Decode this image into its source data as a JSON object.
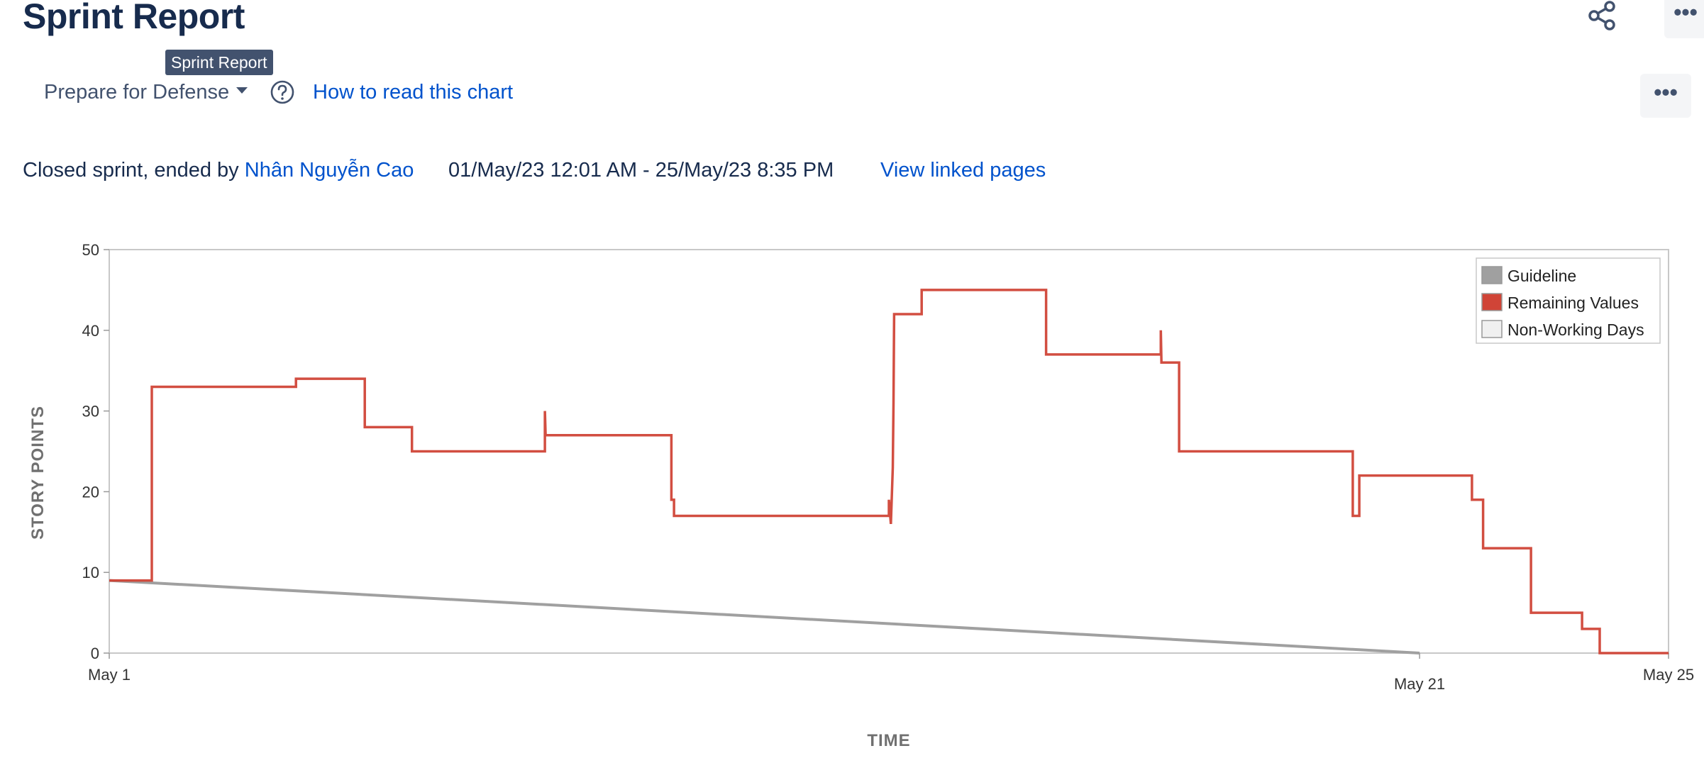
{
  "header": {
    "title": "Sprint Report",
    "tooltip": "Sprint Report",
    "share_icon": "share-icon",
    "more_label": "•••"
  },
  "toolbar": {
    "sprint_selected": "Prepare for Defense",
    "help_icon": "question-circle-icon",
    "how_to_read": "How to read this chart",
    "more_label": "•••"
  },
  "sprint_info": {
    "status_prefix": "Closed sprint, ended by ",
    "ended_by": "Nhân Nguyễn Cao",
    "date_range": "01/May/23 12:01 AM - 25/May/23 8:35 PM",
    "linked_pages": "View linked pages"
  },
  "chart_data": {
    "type": "line",
    "title": "",
    "xlabel": "TIME",
    "ylabel": "STORY POINTS",
    "x_unit": "days since May 1 start",
    "xlim": [
      0,
      23.8
    ],
    "ylim": [
      0,
      50
    ],
    "y_ticks": [
      0,
      10,
      20,
      30,
      40,
      50
    ],
    "x_ticks": [
      {
        "value": 0,
        "label": "May 1"
      },
      {
        "value": 20,
        "label": "May 21"
      },
      {
        "value": 23.8,
        "label": "May 25"
      }
    ],
    "grid": false,
    "legend_placement": "top-right",
    "legend": [
      {
        "name": "Guideline",
        "color": "#a0a0a0"
      },
      {
        "name": "Remaining Values",
        "color": "#d04437"
      },
      {
        "name": "Non-Working Days",
        "color": "#f0f0f0"
      }
    ],
    "series": [
      {
        "name": "Guideline",
        "color": "#a0a0a0",
        "points": [
          [
            0,
            9
          ],
          [
            20,
            0
          ]
        ]
      },
      {
        "name": "Remaining Values",
        "color": "#d04437",
        "step": true,
        "points": [
          [
            0,
            9
          ],
          [
            0.65,
            9
          ],
          [
            0.65,
            33
          ],
          [
            2.85,
            33
          ],
          [
            2.85,
            34
          ],
          [
            3.9,
            34
          ],
          [
            3.9,
            28
          ],
          [
            4.62,
            28
          ],
          [
            4.62,
            25
          ],
          [
            6.65,
            25
          ],
          [
            6.65,
            30
          ],
          [
            6.66,
            27
          ],
          [
            8.58,
            27
          ],
          [
            8.58,
            19
          ],
          [
            8.62,
            19
          ],
          [
            8.62,
            17
          ],
          [
            11.9,
            17
          ],
          [
            11.9,
            19
          ],
          [
            11.93,
            16
          ],
          [
            11.96,
            23
          ],
          [
            11.97,
            31
          ],
          [
            11.98,
            42
          ],
          [
            12.4,
            42
          ],
          [
            12.4,
            45
          ],
          [
            14.3,
            45
          ],
          [
            14.3,
            37
          ],
          [
            16.05,
            37
          ],
          [
            16.05,
            40
          ],
          [
            16.06,
            36
          ],
          [
            16.33,
            36
          ],
          [
            16.33,
            25
          ],
          [
            18.98,
            25
          ],
          [
            18.98,
            17
          ],
          [
            19.08,
            17
          ],
          [
            19.08,
            22
          ],
          [
            20.8,
            22
          ],
          [
            20.8,
            19
          ],
          [
            20.97,
            19
          ],
          [
            20.97,
            13
          ],
          [
            21.7,
            13
          ],
          [
            21.7,
            5
          ],
          [
            22.48,
            5
          ],
          [
            22.48,
            3
          ],
          [
            22.75,
            3
          ],
          [
            22.75,
            0
          ],
          [
            23.8,
            0
          ]
        ]
      }
    ]
  }
}
